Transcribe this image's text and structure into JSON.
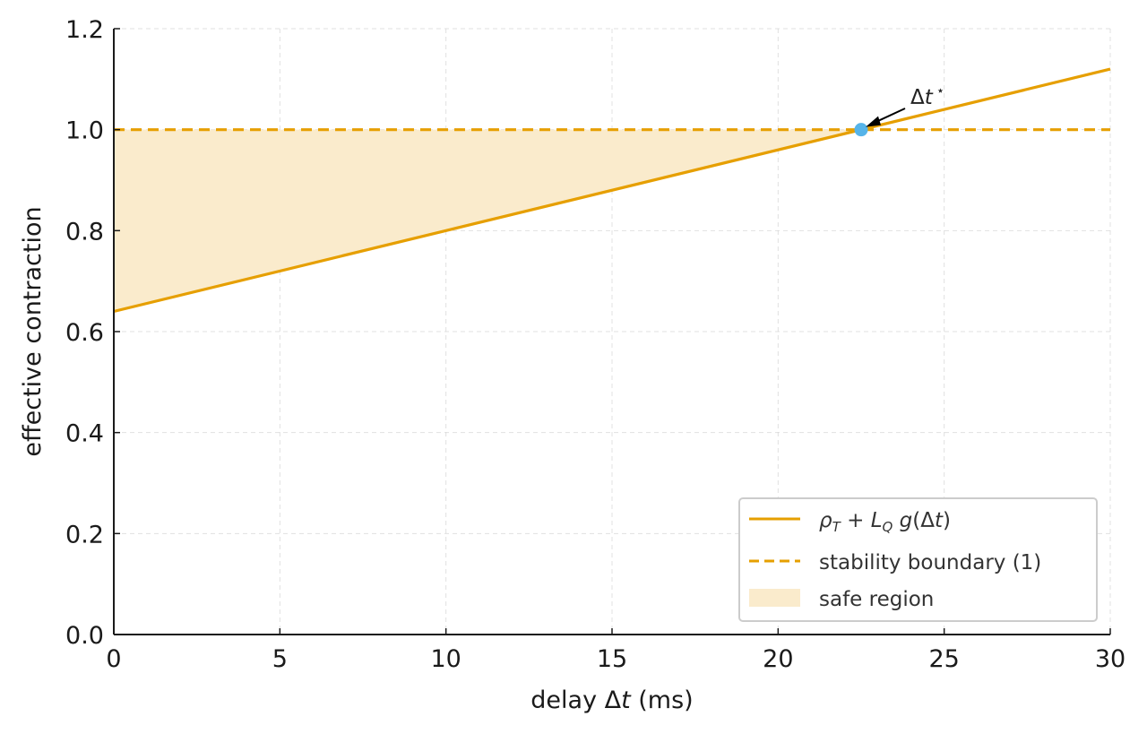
{
  "chart_data": {
    "type": "line",
    "xlabel": "delay Δt (ms)",
    "ylabel": "effective contraction",
    "xlim": [
      0,
      30
    ],
    "ylim": [
      0,
      1.2
    ],
    "x_ticks": [
      "0",
      "5",
      "10",
      "15",
      "20",
      "25",
      "30"
    ],
    "y_ticks": [
      "0.0",
      "0.2",
      "0.4",
      "0.6",
      "0.8",
      "1.0",
      "1.2"
    ],
    "grid": true,
    "legend_position": "bottom-right",
    "series": [
      {
        "name": "ρT + LQ g(Δt)",
        "x": [
          0,
          30
        ],
        "y": [
          0.64,
          1.12
        ],
        "style": "solid",
        "color": "#E69F00"
      },
      {
        "name": "stability boundary (1)",
        "x": [
          0,
          30
        ],
        "y": [
          1.0,
          1.0
        ],
        "style": "dashed",
        "color": "#E69F00"
      }
    ],
    "fill": {
      "name": "safe region",
      "x": [
        0,
        22.5
      ],
      "lower": [
        0.64,
        1.0
      ],
      "upper": [
        1.0,
        1.0
      ],
      "color": "#FAEBCC"
    },
    "point": {
      "x": 22.5,
      "y": 1.0,
      "color": "#56B4E9"
    },
    "annotation": {
      "text": "Δt⋆",
      "target_x": 22.5,
      "target_y": 1.0
    }
  }
}
